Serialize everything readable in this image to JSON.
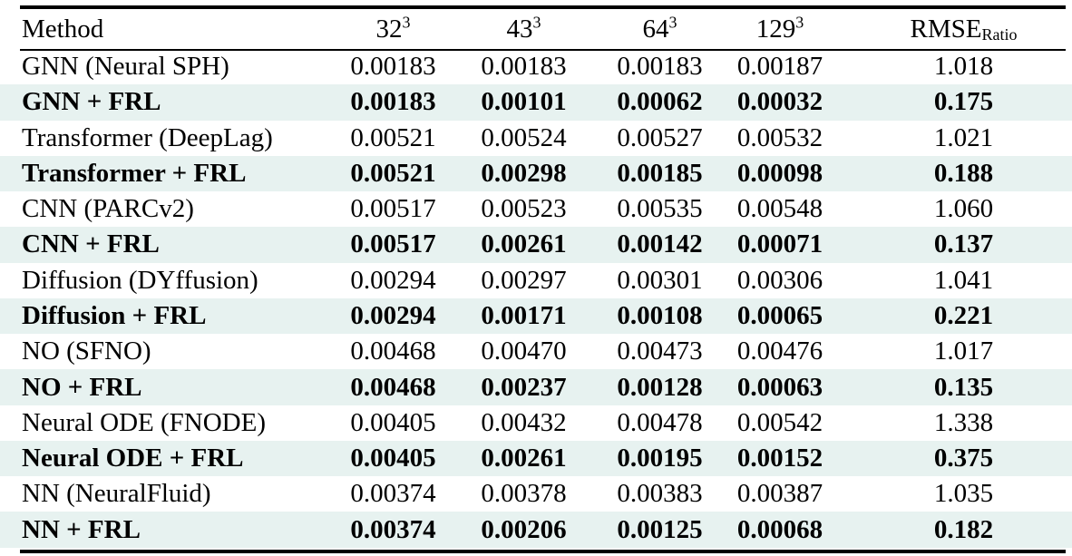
{
  "colors": {
    "background": "#ffffff",
    "row_highlight": "#e7f2f0",
    "text": "#000000",
    "rule": "#000000"
  },
  "table": {
    "columns": [
      {
        "label": "Method"
      },
      {
        "base": "32",
        "sup": "3"
      },
      {
        "base": "43",
        "sup": "3"
      },
      {
        "base": "64",
        "sup": "3"
      },
      {
        "base": "129",
        "sup": "3"
      },
      {
        "base": "RMSE",
        "sub": "Ratio"
      }
    ],
    "rows": [
      {
        "method": "GNN (Neural SPH)",
        "values": [
          "0.00183",
          "0.00183",
          "0.00183",
          "0.00187",
          "1.018"
        ],
        "highlight": false
      },
      {
        "method": "GNN + FRL",
        "values": [
          "0.00183",
          "0.00101",
          "0.00062",
          "0.00032",
          "0.175"
        ],
        "highlight": true
      },
      {
        "method": "Transformer (DeepLag)",
        "values": [
          "0.00521",
          "0.00524",
          "0.00527",
          "0.00532",
          "1.021"
        ],
        "highlight": false
      },
      {
        "method": "Transformer + FRL",
        "values": [
          "0.00521",
          "0.00298",
          "0.00185",
          "0.00098",
          "0.188"
        ],
        "highlight": true
      },
      {
        "method": "CNN (PARCv2)",
        "values": [
          "0.00517",
          "0.00523",
          "0.00535",
          "0.00548",
          "1.060"
        ],
        "highlight": false
      },
      {
        "method": "CNN + FRL",
        "values": [
          "0.00517",
          "0.00261",
          "0.00142",
          "0.00071",
          "0.137"
        ],
        "highlight": true
      },
      {
        "method": "Diffusion (DYffusion)",
        "values": [
          "0.00294",
          "0.00297",
          "0.00301",
          "0.00306",
          "1.041"
        ],
        "highlight": false
      },
      {
        "method": "Diffusion + FRL",
        "values": [
          "0.00294",
          "0.00171",
          "0.00108",
          "0.00065",
          "0.221"
        ],
        "highlight": true
      },
      {
        "method": "NO (SFNO)",
        "values": [
          "0.00468",
          "0.00470",
          "0.00473",
          "0.00476",
          "1.017"
        ],
        "highlight": false
      },
      {
        "method": "NO + FRL",
        "values": [
          "0.00468",
          "0.00237",
          "0.00128",
          "0.00063",
          "0.135"
        ],
        "highlight": true
      },
      {
        "method": "Neural ODE (FNODE)",
        "values": [
          "0.00405",
          "0.00432",
          "0.00478",
          "0.00542",
          "1.338"
        ],
        "highlight": false
      },
      {
        "method": "Neural ODE + FRL",
        "values": [
          "0.00405",
          "0.00261",
          "0.00195",
          "0.00152",
          "0.375"
        ],
        "highlight": true
      },
      {
        "method": "NN (NeuralFluid)",
        "values": [
          "0.00374",
          "0.00378",
          "0.00383",
          "0.00387",
          "1.035"
        ],
        "highlight": false
      },
      {
        "method": "NN + FRL",
        "values": [
          "0.00374",
          "0.00206",
          "0.00125",
          "0.00068",
          "0.182"
        ],
        "highlight": true
      }
    ]
  }
}
